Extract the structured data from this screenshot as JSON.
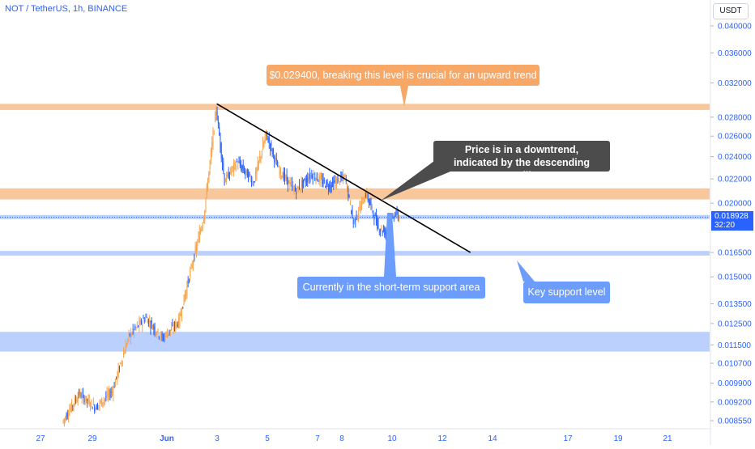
{
  "header": {
    "title": "NOT / TetherUS, 1h, BINANCE"
  },
  "price_scale": {
    "unit": "USDT"
  },
  "last_price": {
    "value": "0.018928",
    "countdown": "32:20"
  },
  "colors": {
    "up": "#f7a44b",
    "down": "#2962ff",
    "resistance_zone": "#f9c79c",
    "support_zone": "#bcd0fd",
    "trendline": "#000000",
    "axis_text": "#2962ff"
  },
  "annotations": {
    "resistance_note": "$0.029400, breaking this level is crucial for an upward trend",
    "trend_note_line1": "Price is in a downtrend,",
    "trend_note_line2": "indicated by the descending trendline",
    "short_term_support_note": "Currently in the short-term support area",
    "key_support_note": "Key support level"
  },
  "chart_data": {
    "type": "candlestick",
    "symbol": "NOT / TetherUS",
    "interval": "1h",
    "exchange": "BINANCE",
    "x_ticks": [
      "27",
      "29",
      "Jun",
      "3",
      "5",
      "7",
      "8",
      "10",
      "12",
      "14",
      "17",
      "19",
      "21"
    ],
    "y_ticks": [
      "0.040000",
      "0.036000",
      "0.032000",
      "0.028000",
      "0.026000",
      "0.024000",
      "0.022000",
      "0.020000",
      "0.016500",
      "0.015000",
      "0.013500",
      "0.012500",
      "0.011500",
      "0.010700",
      "0.009900",
      "0.009200",
      "0.008550"
    ],
    "y_scale": "log",
    "ylim": [
      0.0083,
      0.0428
    ],
    "last_price": 0.018928,
    "zones": [
      {
        "kind": "resistance",
        "low": 0.0288,
        "high": 0.0295
      },
      {
        "kind": "resistance",
        "low": 0.0203,
        "high": 0.0212
      },
      {
        "kind": "support",
        "low": 0.0188,
        "high": 0.0191
      },
      {
        "kind": "support",
        "low": 0.0163,
        "high": 0.0166
      },
      {
        "kind": "support",
        "low": 0.0112,
        "high": 0.0121
      }
    ],
    "trendline": {
      "start": {
        "date": "Jun 3 00:00",
        "price": 0.0295
      },
      "end": {
        "date": "Jun 13 04:00",
        "price": 0.0165
      }
    },
    "path": [
      {
        "date": "May 27 20:00",
        "price": 0.0085
      },
      {
        "date": "May 28 12:00",
        "price": 0.0095
      },
      {
        "date": "May 29 04:00",
        "price": 0.009
      },
      {
        "date": "May 29 20:00",
        "price": 0.0096
      },
      {
        "date": "May 30 12:00",
        "price": 0.0119
      },
      {
        "date": "May 31 04:00",
        "price": 0.0128
      },
      {
        "date": "May 31 20:00",
        "price": 0.0118
      },
      {
        "date": "Jun 1 12:00",
        "price": 0.0126
      },
      {
        "date": "Jun 1 20:00",
        "price": 0.0145
      },
      {
        "date": "Jun 2 12:00",
        "price": 0.019
      },
      {
        "date": "Jun 3 00:00",
        "price": 0.029
      },
      {
        "date": "Jun 3 08:00",
        "price": 0.0218
      },
      {
        "date": "Jun 3 20:00",
        "price": 0.0235
      },
      {
        "date": "Jun 4 12:00",
        "price": 0.0217
      },
      {
        "date": "Jun 5 00:00",
        "price": 0.0262
      },
      {
        "date": "Jun 5 12:00",
        "price": 0.0228
      },
      {
        "date": "Jun 6 04:00",
        "price": 0.021
      },
      {
        "date": "Jun 6 20:00",
        "price": 0.0224
      },
      {
        "date": "Jun 7 12:00",
        "price": 0.0214
      },
      {
        "date": "Jun 8 04:00",
        "price": 0.0222
      },
      {
        "date": "Jun 8 12:00",
        "price": 0.0185
      },
      {
        "date": "Jun 9 00:00",
        "price": 0.0208
      },
      {
        "date": "Jun 9 12:00",
        "price": 0.0182
      },
      {
        "date": "Jun 9 20:00",
        "price": 0.0178
      },
      {
        "date": "Jun 10 04:00",
        "price": 0.0193
      },
      {
        "date": "Jun 10 08:00",
        "price": 0.0189
      }
    ]
  }
}
